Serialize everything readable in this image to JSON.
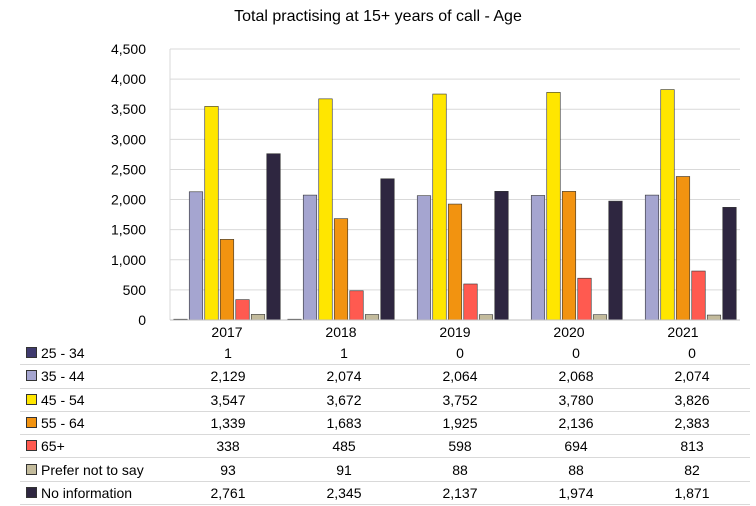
{
  "chart_data": {
    "type": "bar",
    "title": "Total practising at 15+ years of call - Age",
    "categories": [
      "2017",
      "2018",
      "2019",
      "2020",
      "2021"
    ],
    "ylim": [
      0,
      4500
    ],
    "yticks": [
      0,
      500,
      1000,
      1500,
      2000,
      2500,
      3000,
      3500,
      4000,
      4500
    ],
    "ytick_labels": [
      "0",
      "500",
      "1,000",
      "1,500",
      "2,000",
      "2,500",
      "3,000",
      "3,500",
      "4,000",
      "4,500"
    ],
    "grid": true,
    "legend": "data-table",
    "series": [
      {
        "name": "25 - 34",
        "color": "#3f3a6e",
        "values": [
          1,
          1,
          0,
          0,
          0
        ],
        "labels": [
          "1",
          "1",
          "0",
          "0",
          "0"
        ]
      },
      {
        "name": "35 - 44",
        "color": "#a5a5d0",
        "values": [
          2129,
          2074,
          2064,
          2068,
          2074
        ],
        "labels": [
          "2,129",
          "2,074",
          "2,064",
          "2,068",
          "2,074"
        ]
      },
      {
        "name": "45 - 54",
        "color": "#ffe600",
        "values": [
          3547,
          3672,
          3752,
          3780,
          3826
        ],
        "labels": [
          "3,547",
          "3,672",
          "3,752",
          "3,780",
          "3,826"
        ]
      },
      {
        "name": "55 - 64",
        "color": "#f29310",
        "values": [
          1339,
          1683,
          1925,
          2136,
          2383
        ],
        "labels": [
          "1,339",
          "1,683",
          "1,925",
          "2,136",
          "2,383"
        ]
      },
      {
        "name": "65+",
        "color": "#ff5a50",
        "values": [
          338,
          485,
          598,
          694,
          813
        ],
        "labels": [
          "338",
          "485",
          "598",
          "694",
          "813"
        ]
      },
      {
        "name": "Prefer not to say",
        "color": "#c3bb9c",
        "values": [
          93,
          91,
          88,
          88,
          82
        ],
        "labels": [
          "93",
          "91",
          "88",
          "88",
          "82"
        ]
      },
      {
        "name": "No information",
        "color": "#2e2640",
        "values": [
          2761,
          2345,
          2137,
          1974,
          1871
        ],
        "labels": [
          "2,761",
          "2,345",
          "2,137",
          "1,974",
          "1,871"
        ]
      }
    ]
  }
}
